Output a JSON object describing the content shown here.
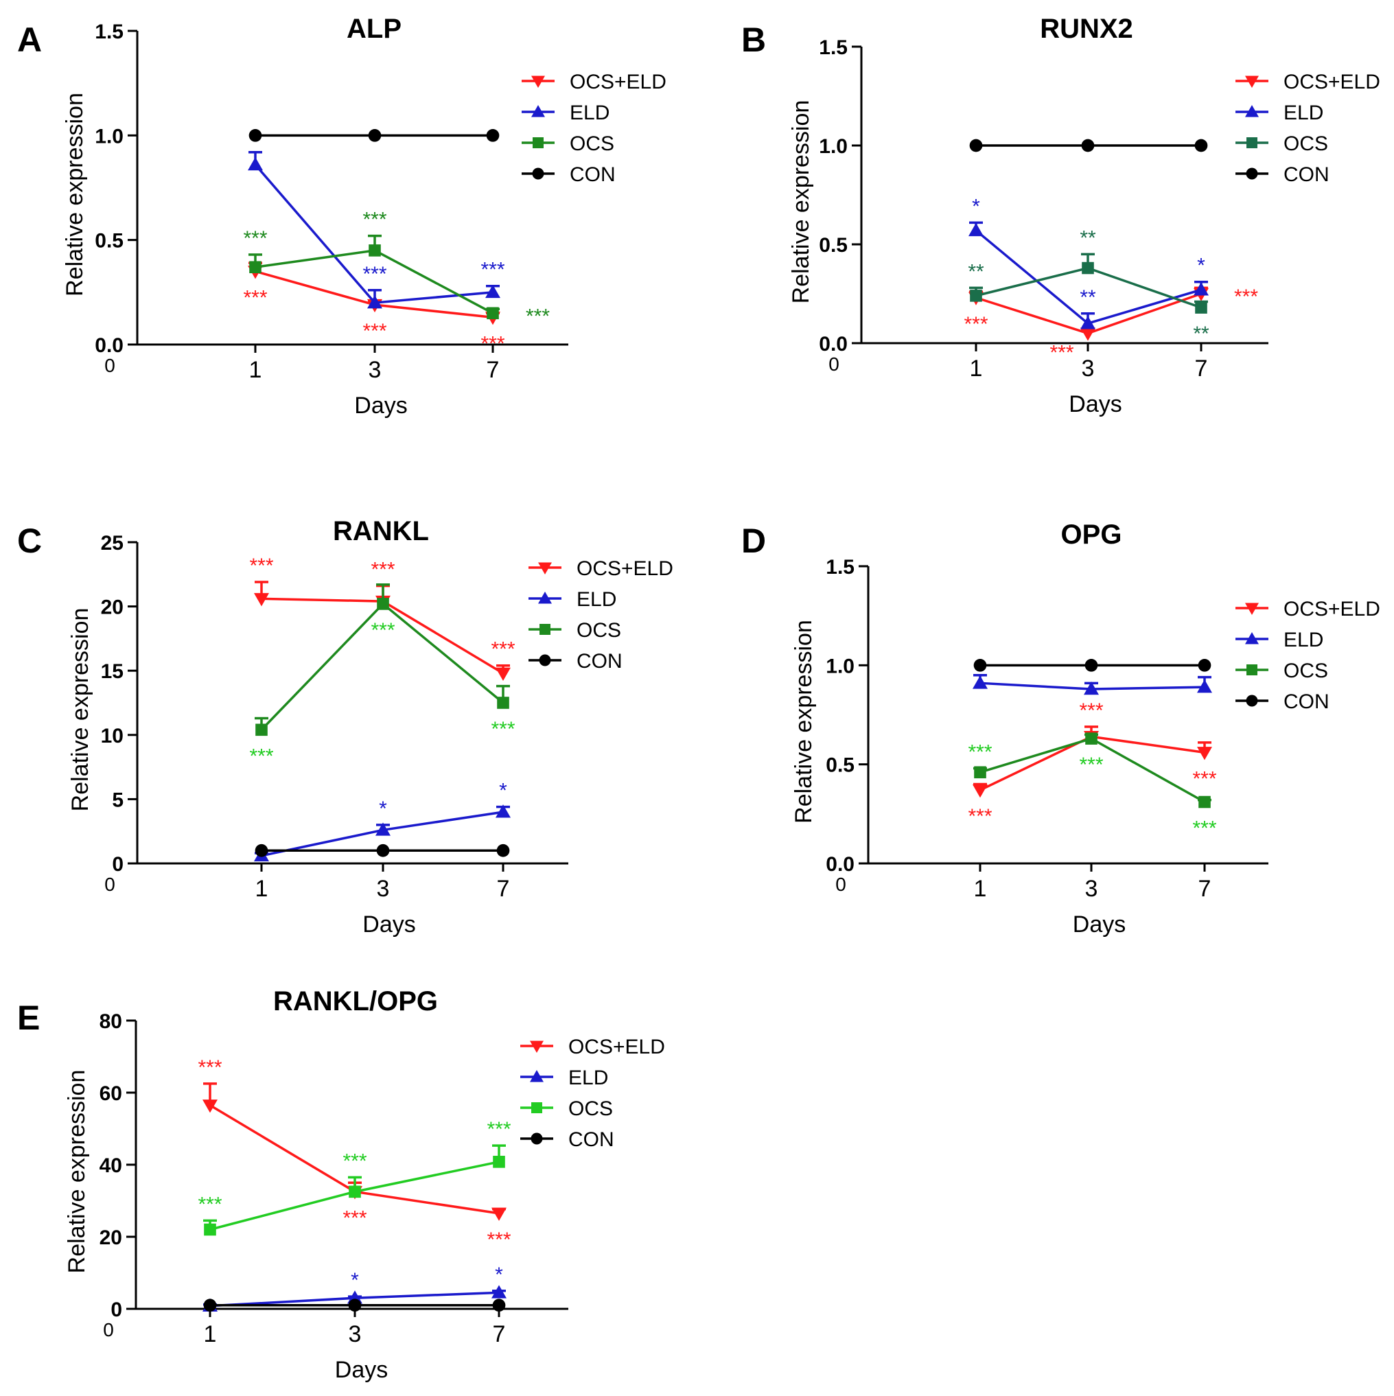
{
  "colors": {
    "OCS+ELD": "#ff1a1a",
    "ELD": "#1a1acc",
    "OCS": "#1e8a1e",
    "OCS_light": "#22cc22",
    "OCS_teal": "#1a6e4a",
    "CON": "#000000",
    "axis": "#000000"
  },
  "chart_data": [
    {
      "id": "A",
      "panel_label": "A",
      "type": "line",
      "title": "ALP",
      "xlabel": "Days",
      "ylabel": "Relative expression",
      "x_ticks": [
        "0",
        "1",
        "3",
        "7"
      ],
      "y_ticks": [
        "0.0",
        "0.5",
        "1.0",
        "1.5"
      ],
      "ylim": [
        0,
        1.5
      ],
      "legend": [
        "OCS+ELD",
        "ELD",
        "OCS",
        "CON"
      ],
      "series": [
        {
          "name": "OCS+ELD",
          "color_key": "OCS+ELD",
          "marker": "tri-down",
          "values": [
            0.35,
            0.19,
            0.13
          ],
          "err": [
            0.04,
            0.02,
            0.02
          ]
        },
        {
          "name": "ELD",
          "color_key": "ELD",
          "marker": "tri-up",
          "values": [
            0.86,
            0.2,
            0.25
          ],
          "err": [
            0.06,
            0.06,
            0.03
          ]
        },
        {
          "name": "OCS",
          "color_key": "OCS",
          "marker": "square",
          "values": [
            0.37,
            0.45,
            0.15
          ],
          "err": [
            0.06,
            0.07,
            0.02
          ]
        },
        {
          "name": "CON",
          "color_key": "CON",
          "marker": "circle",
          "values": [
            1.0,
            1.0,
            1.0
          ],
          "err": [
            0,
            0,
            0
          ]
        }
      ],
      "annotations": [
        {
          "text": "***",
          "series": "OCS",
          "pt": 0,
          "pos": "above"
        },
        {
          "text": "***",
          "series": "OCS+ELD",
          "pt": 0,
          "pos": "below"
        },
        {
          "text": "***",
          "series": "OCS",
          "pt": 1,
          "pos": "above"
        },
        {
          "text": "***",
          "series": "ELD",
          "pt": 1,
          "pos": "above"
        },
        {
          "text": "***",
          "series": "OCS+ELD",
          "pt": 1,
          "pos": "below"
        },
        {
          "text": "***",
          "series": "ELD",
          "pt": 2,
          "pos": "above"
        },
        {
          "text": "***",
          "series": "OCS",
          "pt": 2,
          "pos": "right"
        },
        {
          "text": "***",
          "series": "OCS+ELD",
          "pt": 2,
          "pos": "below"
        }
      ]
    },
    {
      "id": "B",
      "panel_label": "B",
      "type": "line",
      "title": "RUNX2",
      "xlabel": "Days",
      "ylabel": "Relative expression",
      "x_ticks": [
        "0",
        "1",
        "3",
        "7"
      ],
      "y_ticks": [
        "0.0",
        "0.5",
        "1.0",
        "1.5"
      ],
      "ylim": [
        0,
        1.5
      ],
      "legend": [
        "OCS+ELD",
        "ELD",
        "OCS",
        "CON"
      ],
      "series": [
        {
          "name": "OCS+ELD",
          "color_key": "OCS+ELD",
          "marker": "tri-down",
          "values": [
            0.23,
            0.05,
            0.25
          ],
          "err": [
            0.03,
            0.02,
            0.03
          ]
        },
        {
          "name": "ELD",
          "color_key": "ELD",
          "marker": "tri-up",
          "values": [
            0.57,
            0.1,
            0.27
          ],
          "err": [
            0.04,
            0.05,
            0.04
          ]
        },
        {
          "name": "OCS",
          "color_key": "OCS_teal",
          "marker": "square",
          "values": [
            0.24,
            0.38,
            0.18
          ],
          "err": [
            0.04,
            0.07,
            0.03
          ]
        },
        {
          "name": "CON",
          "color_key": "CON",
          "marker": "circle",
          "values": [
            1.0,
            1.0,
            1.0
          ],
          "err": [
            0,
            0,
            0
          ]
        }
      ],
      "annotations": [
        {
          "text": "*",
          "series": "ELD",
          "pt": 0,
          "pos": "above"
        },
        {
          "text": "**",
          "series": "OCS",
          "pt": 0,
          "pos": "above"
        },
        {
          "text": "***",
          "series": "OCS+ELD",
          "pt": 0,
          "pos": "below"
        },
        {
          "text": "**",
          "series": "OCS",
          "pt": 1,
          "pos": "above"
        },
        {
          "text": "**",
          "series": "ELD",
          "pt": 1,
          "pos": "above"
        },
        {
          "text": "***",
          "series": "OCS+ELD",
          "pt": 1,
          "pos": "belowleft"
        },
        {
          "text": "*",
          "series": "ELD",
          "pt": 2,
          "pos": "above"
        },
        {
          "text": "***",
          "series": "OCS+ELD",
          "pt": 2,
          "pos": "right"
        },
        {
          "text": "**",
          "series": "OCS",
          "pt": 2,
          "pos": "below"
        }
      ]
    },
    {
      "id": "C",
      "panel_label": "C",
      "type": "line",
      "title": "RANKL",
      "xlabel": "Days",
      "ylabel": "Relative expression",
      "x_ticks": [
        "0",
        "1",
        "3",
        "7"
      ],
      "y_ticks": [
        "0",
        "5",
        "10",
        "15",
        "20",
        "25"
      ],
      "ylim": [
        0,
        25
      ],
      "legend": [
        "OCS+ELD",
        "ELD",
        "OCS",
        "CON"
      ],
      "series": [
        {
          "name": "OCS+ELD",
          "color_key": "OCS+ELD",
          "marker": "tri-down",
          "values": [
            20.6,
            20.4,
            14.8
          ],
          "err": [
            1.3,
            1.2,
            0.6
          ]
        },
        {
          "name": "ELD",
          "color_key": "ELD",
          "marker": "tri-up",
          "values": [
            0.6,
            2.6,
            4.0
          ],
          "err": [
            0.2,
            0.4,
            0.4
          ]
        },
        {
          "name": "OCS",
          "color_key": "OCS",
          "marker": "square",
          "values": [
            10.4,
            20.2,
            12.5
          ],
          "err": [
            0.9,
            1.5,
            1.3
          ]
        },
        {
          "name": "CON",
          "color_key": "CON",
          "marker": "circle",
          "values": [
            1.0,
            1.0,
            1.0
          ],
          "err": [
            0,
            0,
            0
          ]
        }
      ],
      "annotations": [
        {
          "text": "***",
          "series": "OCS+ELD",
          "pt": 0,
          "pos": "above"
        },
        {
          "text": "***",
          "series": "OCS",
          "pt": 0,
          "pos": "below",
          "color_key": "OCS_light"
        },
        {
          "text": "***",
          "series": "OCS+ELD",
          "pt": 1,
          "pos": "above"
        },
        {
          "text": "***",
          "series": "OCS",
          "pt": 1,
          "pos": "below",
          "color_key": "OCS_light"
        },
        {
          "text": "***",
          "series": "OCS+ELD",
          "pt": 2,
          "pos": "above"
        },
        {
          "text": "***",
          "series": "OCS",
          "pt": 2,
          "pos": "below",
          "color_key": "OCS_light"
        },
        {
          "text": "*",
          "series": "ELD",
          "pt": 1,
          "pos": "above"
        },
        {
          "text": "*",
          "series": "ELD",
          "pt": 2,
          "pos": "above"
        }
      ]
    },
    {
      "id": "D",
      "panel_label": "D",
      "type": "line",
      "title": "OPG",
      "xlabel": "Days",
      "ylabel": "Relative expression",
      "x_ticks": [
        "0",
        "1",
        "3",
        "7"
      ],
      "y_ticks": [
        "0.0",
        "0.5",
        "1.0",
        "1.5"
      ],
      "ylim": [
        0,
        1.5
      ],
      "legend": [
        "OCS+ELD",
        "ELD",
        "OCS",
        "CON"
      ],
      "series": [
        {
          "name": "OCS+ELD",
          "color_key": "OCS+ELD",
          "marker": "tri-down",
          "values": [
            0.37,
            0.64,
            0.56
          ],
          "err": [
            0.03,
            0.05,
            0.05
          ]
        },
        {
          "name": "ELD",
          "color_key": "ELD",
          "marker": "tri-up",
          "values": [
            0.91,
            0.88,
            0.89
          ],
          "err": [
            0.04,
            0.03,
            0.05
          ]
        },
        {
          "name": "OCS",
          "color_key": "OCS",
          "marker": "square",
          "values": [
            0.46,
            0.63,
            0.31
          ],
          "err": [
            0.02,
            0.02,
            0.01
          ]
        },
        {
          "name": "CON",
          "color_key": "CON",
          "marker": "circle",
          "values": [
            1.0,
            1.0,
            1.0
          ],
          "err": [
            0,
            0,
            0
          ]
        }
      ],
      "annotations": [
        {
          "text": "***",
          "series": "OCS",
          "pt": 0,
          "pos": "above",
          "color_key": "OCS_light"
        },
        {
          "text": "***",
          "series": "OCS+ELD",
          "pt": 0,
          "pos": "below"
        },
        {
          "text": "***",
          "series": "OCS+ELD",
          "pt": 1,
          "pos": "above"
        },
        {
          "text": "***",
          "series": "OCS",
          "pt": 1,
          "pos": "below",
          "color_key": "OCS_light"
        },
        {
          "text": "***",
          "series": "OCS+ELD",
          "pt": 2,
          "pos": "below"
        },
        {
          "text": "***",
          "series": "OCS",
          "pt": 2,
          "pos": "below",
          "color_key": "OCS_light"
        }
      ]
    },
    {
      "id": "E",
      "panel_label": "E",
      "type": "line",
      "title": "RANKL/OPG",
      "xlabel": "Days",
      "ylabel": "Relative expression",
      "x_ticks": [
        "0",
        "1",
        "3",
        "7"
      ],
      "y_ticks": [
        "0",
        "20",
        "40",
        "60",
        "80"
      ],
      "ylim": [
        0,
        80
      ],
      "legend": [
        "OCS+ELD",
        "ELD",
        "OCS",
        "CON"
      ],
      "series": [
        {
          "name": "OCS+ELD",
          "color_key": "OCS+ELD",
          "marker": "tri-down",
          "values": [
            56.5,
            32.5,
            26.5
          ],
          "err": [
            6.0,
            2.5,
            1.2
          ]
        },
        {
          "name": "ELD",
          "color_key": "ELD",
          "marker": "tri-up",
          "values": [
            0.8,
            3.0,
            4.5
          ],
          "err": [
            0.4,
            0.4,
            0.5
          ]
        },
        {
          "name": "OCS",
          "color_key": "OCS_light",
          "marker": "square",
          "values": [
            22.0,
            32.5,
            40.8
          ],
          "err": [
            2.5,
            4.0,
            4.5
          ]
        },
        {
          "name": "CON",
          "color_key": "CON",
          "marker": "circle",
          "values": [
            1.0,
            1.0,
            1.0
          ],
          "err": [
            0,
            0,
            0
          ]
        }
      ],
      "annotations": [
        {
          "text": "***",
          "series": "OCS+ELD",
          "pt": 0,
          "pos": "above"
        },
        {
          "text": "***",
          "series": "OCS",
          "pt": 0,
          "pos": "above"
        },
        {
          "text": "***",
          "series": "OCS",
          "pt": 1,
          "pos": "above"
        },
        {
          "text": "***",
          "series": "OCS+ELD",
          "pt": 1,
          "pos": "below"
        },
        {
          "text": "***",
          "series": "OCS",
          "pt": 2,
          "pos": "above"
        },
        {
          "text": "***",
          "series": "OCS+ELD",
          "pt": 2,
          "pos": "below"
        },
        {
          "text": "*",
          "series": "ELD",
          "pt": 1,
          "pos": "above"
        },
        {
          "text": "*",
          "series": "ELD",
          "pt": 2,
          "pos": "above"
        }
      ]
    }
  ]
}
